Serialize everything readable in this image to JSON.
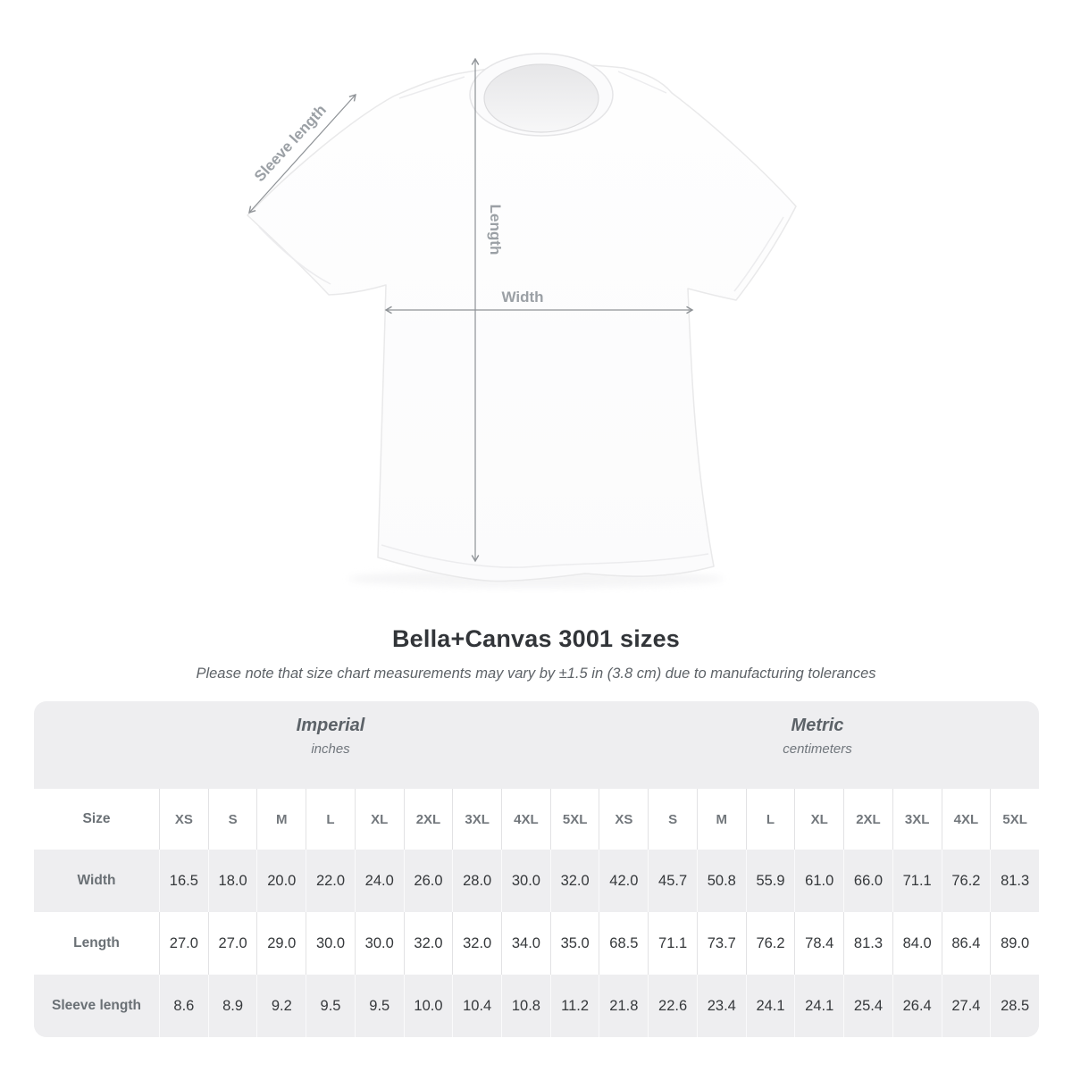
{
  "title": "Bella+Canvas 3001 sizes",
  "subtitle": "Please note that size chart measurements may vary by ±1.5 in (3.8 cm) due to manufacturing tolerances",
  "diagram": {
    "width_label": "Width",
    "length_label": "Length",
    "sleeve_label": "Sleeve length",
    "arrow_color": "#8e9296",
    "label_color": "#9ba0a5"
  },
  "table": {
    "size_label": "Size",
    "groups": [
      {
        "name": "Imperial",
        "unit": "inches"
      },
      {
        "name": "Metric",
        "unit": "centimeters"
      }
    ],
    "sizes": [
      "XS",
      "S",
      "M",
      "L",
      "XL",
      "2XL",
      "3XL",
      "4XL",
      "5XL",
      "XS",
      "S",
      "M",
      "L",
      "XL",
      "2XL",
      "3XL",
      "4XL",
      "5XL"
    ],
    "rows": [
      {
        "key": "width",
        "label": "Width",
        "values": [
          "16.5",
          "18.0",
          "20.0",
          "22.0",
          "24.0",
          "26.0",
          "28.0",
          "30.0",
          "32.0",
          "42.0",
          "45.7",
          "50.8",
          "55.9",
          "61.0",
          "66.0",
          "71.1",
          "76.2",
          "81.3"
        ]
      },
      {
        "key": "length",
        "label": "Length",
        "values": [
          "27.0",
          "27.0",
          "29.0",
          "30.0",
          "30.0",
          "32.0",
          "32.0",
          "34.0",
          "35.0",
          "68.5",
          "71.1",
          "73.7",
          "76.2",
          "78.4",
          "81.3",
          "84.0",
          "86.4",
          "89.0"
        ]
      },
      {
        "key": "sleeve",
        "label": "Sleeve length",
        "values": [
          "8.6",
          "8.9",
          "9.2",
          "9.5",
          "9.5",
          "10.0",
          "10.4",
          "10.8",
          "11.2",
          "21.8",
          "22.6",
          "23.4",
          "24.1",
          "24.1",
          "25.4",
          "26.4",
          "27.4",
          "28.5"
        ]
      }
    ],
    "stripe_color": "#eeeef0",
    "card_color": "#eeeef0"
  },
  "chart_data": {
    "type": "table",
    "title": "Bella+Canvas 3001 sizes",
    "column_groups": [
      "Imperial (inches)",
      "Metric (centimeters)"
    ],
    "columns": [
      "XS",
      "S",
      "M",
      "L",
      "XL",
      "2XL",
      "3XL",
      "4XL",
      "5XL",
      "XS",
      "S",
      "M",
      "L",
      "XL",
      "2XL",
      "3XL",
      "4XL",
      "5XL"
    ],
    "rows": [
      {
        "label": "Width",
        "values": [
          16.5,
          18.0,
          20.0,
          22.0,
          24.0,
          26.0,
          28.0,
          30.0,
          32.0,
          42.0,
          45.7,
          50.8,
          55.9,
          61.0,
          66.0,
          71.1,
          76.2,
          81.3
        ]
      },
      {
        "label": "Length",
        "values": [
          27.0,
          27.0,
          29.0,
          30.0,
          30.0,
          32.0,
          32.0,
          34.0,
          35.0,
          68.5,
          71.1,
          73.7,
          76.2,
          78.4,
          81.3,
          84.0,
          86.4,
          89.0
        ]
      },
      {
        "label": "Sleeve length",
        "values": [
          8.6,
          8.9,
          9.2,
          9.5,
          9.5,
          10.0,
          10.4,
          10.8,
          11.2,
          21.8,
          22.6,
          23.4,
          24.1,
          24.1,
          25.4,
          26.4,
          27.4,
          28.5
        ]
      }
    ]
  }
}
